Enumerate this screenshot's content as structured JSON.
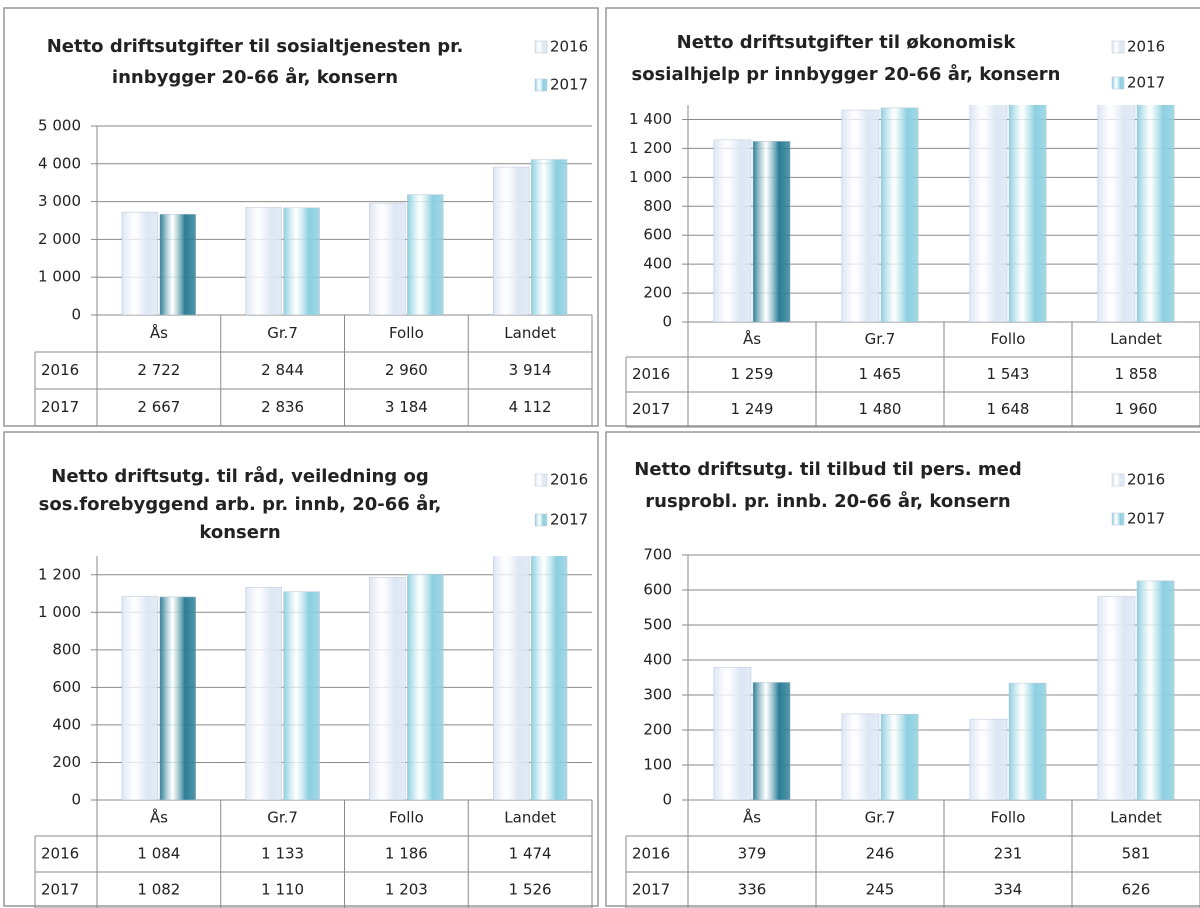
{
  "chart_data": [
    {
      "type": "bar",
      "title": [
        "Netto driftsutgifter til sosialtjenesten pr.",
        "innbygger 20-66 år, konsern"
      ],
      "categories": [
        "Ås",
        "Gr.7",
        "Follo",
        "Landet"
      ],
      "series": [
        {
          "name": "2016",
          "color": "#dde6f4",
          "values": [
            2722,
            2844,
            2960,
            3914
          ],
          "value_labels": [
            "2 722",
            "2 844",
            "2 960",
            "3 914"
          ]
        },
        {
          "name": "2017",
          "color": "#8ccfe0",
          "colors": [
            "#2b7d96",
            "#8ccfe0",
            "#8ccfe0",
            "#8ccfe0"
          ],
          "values": [
            2667,
            2836,
            3184,
            4112
          ],
          "value_labels": [
            "2 667",
            "2 836",
            "3 184",
            "4 112"
          ]
        }
      ],
      "ylim": [
        0,
        5000
      ],
      "yticks": [
        0,
        {
          "value": 1000,
          "label": "1 000"
        },
        {
          "value": 2000,
          "label": "2 000"
        },
        {
          "value": 3000,
          "label": "3 000"
        },
        {
          "value": 4000,
          "label": "4 000"
        },
        {
          "value": 5000,
          "label": "5 000"
        }
      ],
      "grid": true,
      "legend": "top-right"
    },
    {
      "type": "bar",
      "title": [
        "Netto driftsutgifter til økonomisk",
        "sosialhjelp pr innbygger 20-66 år, konsern"
      ],
      "categories": [
        "Ås",
        "Gr.7",
        "Follo",
        "Landet"
      ],
      "series": [
        {
          "name": "2016",
          "color": "#dde6f4",
          "values": [
            1259,
            1465,
            1543,
            1858
          ],
          "value_labels": [
            "1 259",
            "1 465",
            "1 543",
            "1 858"
          ]
        },
        {
          "name": "2017",
          "color": "#8ccfe0",
          "colors": [
            "#2b7d96",
            "#8ccfe0",
            "#8ccfe0",
            "#8ccfe0"
          ],
          "values": [
            1249,
            1480,
            1648,
            1960
          ],
          "value_labels": [
            "1 249",
            "1 480",
            "1 648",
            "1 960"
          ]
        }
      ],
      "ylim": [
        0,
        1500
      ],
      "yticks": [
        0,
        200,
        400,
        600,
        800,
        {
          "value": 1000,
          "label": "1 000"
        },
        {
          "value": 1200,
          "label": "1 200"
        },
        {
          "value": 1400,
          "label": "1 400"
        }
      ],
      "grid": true,
      "legend": "top-right"
    },
    {
      "type": "bar",
      "title": [
        "Netto driftsutg. til råd, veiledning og",
        "sos.forebyggend arb. pr. innb, 20-66 år,",
        "konsern"
      ],
      "categories": [
        "Ås",
        "Gr.7",
        "Follo",
        "Landet"
      ],
      "series": [
        {
          "name": "2016",
          "color": "#dde6f4",
          "values": [
            1084,
            1133,
            1186,
            1474
          ],
          "value_labels": [
            "1 084",
            "1 133",
            "1 186",
            "1 474"
          ]
        },
        {
          "name": "2017",
          "color": "#8ccfe0",
          "colors": [
            "#2b7d96",
            "#8ccfe0",
            "#8ccfe0",
            "#8ccfe0"
          ],
          "values": [
            1082,
            1110,
            1203,
            1526
          ],
          "value_labels": [
            "1 082",
            "1 110",
            "1 203",
            "1 526"
          ]
        }
      ],
      "ylim": [
        0,
        1300
      ],
      "yticks": [
        0,
        200,
        400,
        600,
        800,
        {
          "value": 1000,
          "label": "1 000"
        },
        {
          "value": 1200,
          "label": "1 200"
        }
      ],
      "grid": true,
      "legend": "top-right"
    },
    {
      "type": "bar",
      "title": [
        "Netto driftsutg. til tilbud til pers. med",
        "rusprobl. pr. innb. 20-66 år, konsern"
      ],
      "categories": [
        "Ås",
        "Gr.7",
        "Follo",
        "Landet"
      ],
      "series": [
        {
          "name": "2016",
          "color": "#dde6f4",
          "values": [
            379,
            246,
            231,
            581
          ]
        },
        {
          "name": "2017",
          "color": "#8ccfe0",
          "colors": [
            "#2b7d96",
            "#8ccfe0",
            "#8ccfe0",
            "#8ccfe0"
          ],
          "values": [
            336,
            245,
            334,
            626
          ]
        }
      ],
      "ylim": [
        0,
        700
      ],
      "yticks": [
        0,
        100,
        200,
        300,
        400,
        500,
        600,
        700
      ],
      "grid": true,
      "legend": "top-right"
    }
  ]
}
